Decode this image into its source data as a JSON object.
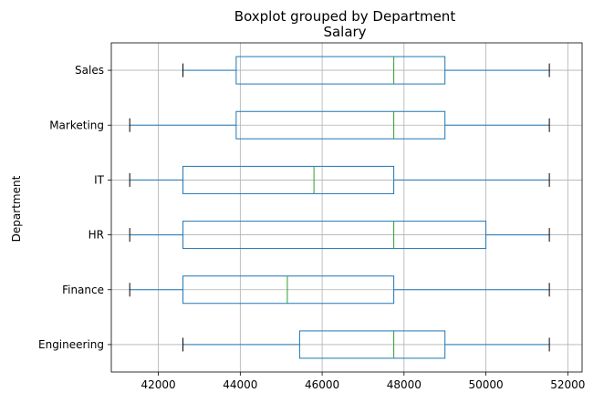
{
  "chart_data": {
    "type": "boxplot",
    "orientation": "horizontal",
    "title": "Boxplot grouped by Department",
    "subtitle": "Salary",
    "xlabel": "",
    "ylabel": "Department",
    "xlim": [
      40850,
      52350
    ],
    "xticks": [
      42000,
      44000,
      46000,
      48000,
      50000,
      52000
    ],
    "xtick_labels": [
      "42000",
      "44000",
      "46000",
      "48000",
      "50000",
      "52000"
    ],
    "grid": true,
    "categories": [
      "Engineering",
      "Finance",
      "HR",
      "IT",
      "Marketing",
      "Sales"
    ],
    "boxes": [
      {
        "name": "Engineering",
        "whisker_low": 42600,
        "q1": 45450,
        "median": 47750,
        "q3": 49000,
        "whisker_high": 51550
      },
      {
        "name": "Finance",
        "whisker_low": 41300,
        "q1": 42600,
        "median": 45150,
        "q3": 47750,
        "whisker_high": 51550
      },
      {
        "name": "HR",
        "whisker_low": 41300,
        "q1": 42600,
        "median": 47750,
        "q3": 50000,
        "whisker_high": 51550
      },
      {
        "name": "IT",
        "whisker_low": 41300,
        "q1": 42600,
        "median": 45800,
        "q3": 47750,
        "whisker_high": 51550
      },
      {
        "name": "Marketing",
        "whisker_low": 41300,
        "q1": 43900,
        "median": 47750,
        "q3": 49000,
        "whisker_high": 51550
      },
      {
        "name": "Sales",
        "whisker_low": 42600,
        "q1": 43900,
        "median": 47750,
        "q3": 49000,
        "whisker_high": 51550
      }
    ],
    "colors": {
      "box": "#1f77b4",
      "whisker": "#1f77b4",
      "median": "#2ca02c",
      "cap": "#000000",
      "grid": "#b0b0b0",
      "axis": "#000000"
    }
  }
}
